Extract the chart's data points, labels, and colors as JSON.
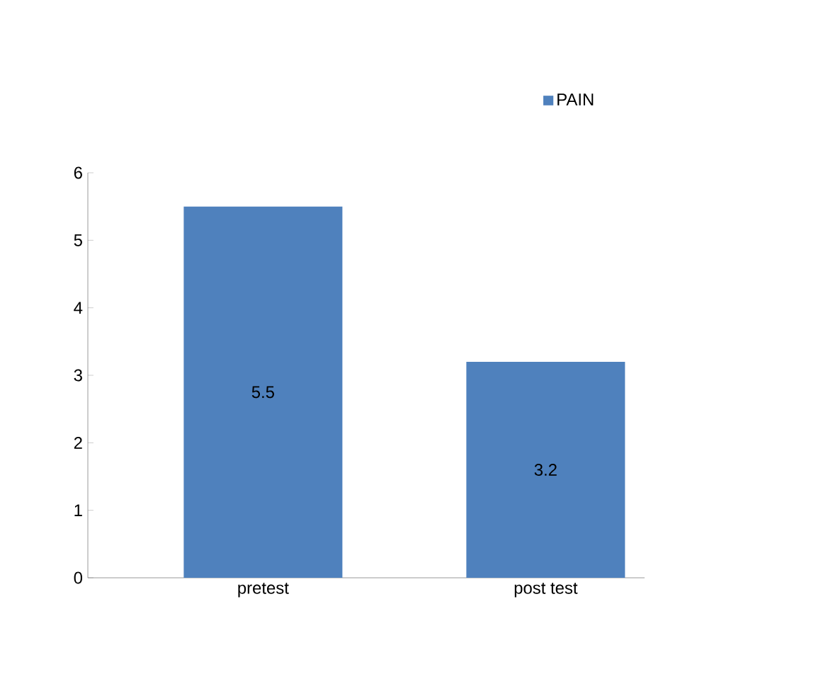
{
  "chart_data": {
    "type": "bar",
    "categories": [
      "pretest",
      "post test"
    ],
    "series": [
      {
        "name": "PAIN",
        "color": "#4f81bd",
        "values": [
          5.5,
          3.2
        ]
      }
    ],
    "ylim": [
      0,
      6
    ],
    "yticks": [
      0,
      1,
      2,
      3,
      4,
      5,
      6
    ],
    "legend": "top right",
    "data_labels": true,
    "grid": false
  }
}
